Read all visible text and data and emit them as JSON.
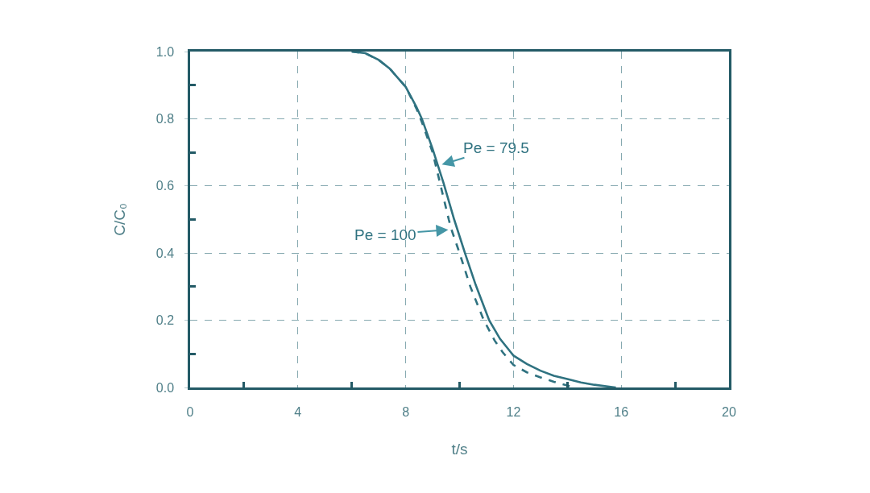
{
  "chart_data": {
    "type": "line",
    "xlabel": "t/s",
    "ylabel": "C/C₀",
    "xlim": [
      0,
      20
    ],
    "xticks": [
      0,
      {
        "value": 2,
        "label": null
      },
      4,
      {
        "value": 6,
        "label": null
      },
      8,
      {
        "value": 10,
        "label": null
      },
      12,
      {
        "value": 14,
        "label": null
      },
      16,
      {
        "value": 18,
        "label": null
      },
      20
    ],
    "ylim": [
      0,
      1
    ],
    "yticks": [
      {
        "value": 0,
        "label": "0.0"
      },
      {
        "value": 0.1,
        "label": null
      },
      0.2,
      {
        "value": 0.3,
        "label": null
      },
      0.4,
      {
        "value": 0.5,
        "label": null
      },
      0.6,
      {
        "value": 0.7,
        "label": null
      },
      0.8,
      {
        "value": 0.9,
        "label": null
      },
      {
        "value": 1,
        "label": "1.0"
      }
    ],
    "grid": true,
    "legend": false,
    "series": [
      {
        "name": "Pe = 79.5",
        "color": "#2f7280",
        "line_style": "solid",
        "x": [
          6.0,
          6.5,
          7.0,
          7.4,
          8.0,
          8.4,
          8.6,
          9.0,
          9.2,
          9.4,
          9.8,
          10.2,
          10.6,
          11.1,
          11.5,
          11.9,
          12.0,
          12.5,
          13.0,
          13.5,
          14.0,
          14.5,
          15.0,
          15.5,
          15.8
        ],
        "values": [
          1.0,
          0.995,
          0.975,
          0.95,
          0.895,
          0.835,
          0.8,
          0.71,
          0.66,
          0.61,
          0.5,
          0.4,
          0.305,
          0.2,
          0.145,
          0.105,
          0.095,
          0.07,
          0.05,
          0.035,
          0.025,
          0.015,
          0.008,
          0.003,
          0.0
        ]
      },
      {
        "name": "Pe = 100",
        "color": "#2f7280",
        "line_style": "dashed",
        "x": [
          6.0,
          6.5,
          7.0,
          7.4,
          8.0,
          8.4,
          8.6,
          9.0,
          9.3,
          9.6,
          9.7,
          10.0,
          10.4,
          10.9,
          11.3,
          11.6,
          12.0,
          12.5,
          13.0,
          13.5,
          14.0,
          14.2
        ],
        "values": [
          1.0,
          0.995,
          0.975,
          0.95,
          0.895,
          0.83,
          0.79,
          0.7,
          0.6,
          0.5,
          0.47,
          0.4,
          0.3,
          0.2,
          0.14,
          0.105,
          0.067,
          0.045,
          0.03,
          0.017,
          0.006,
          0.0
        ]
      }
    ]
  }
}
